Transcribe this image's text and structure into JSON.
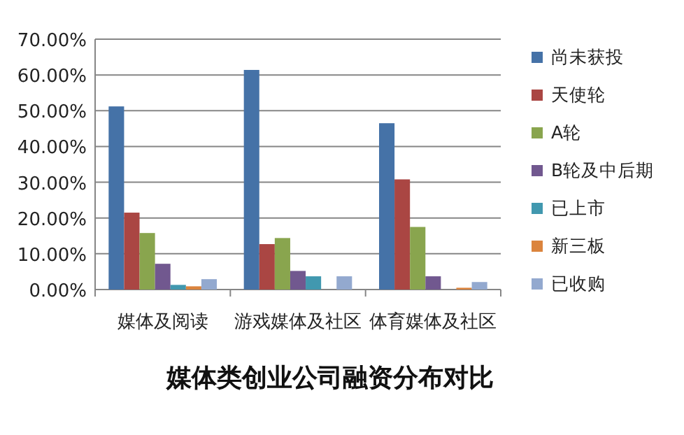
{
  "chart_data": {
    "type": "bar",
    "title": "媒体类创业公司融资分布对比",
    "categories": [
      "媒体及阅读",
      "游戏媒体及社区",
      "体育媒体及社区"
    ],
    "series": [
      {
        "name": "尚未获投",
        "color": "#4572a7",
        "values": [
          51.2,
          61.4,
          46.5
        ]
      },
      {
        "name": "天使轮",
        "color": "#aa4643",
        "values": [
          21.5,
          12.7,
          30.8
        ]
      },
      {
        "name": "A轮",
        "color": "#89a54e",
        "values": [
          15.8,
          14.4,
          17.5
        ]
      },
      {
        "name": "B轮及中后期",
        "color": "#71588f",
        "values": [
          7.2,
          5.2,
          3.7
        ]
      },
      {
        "name": "已上市",
        "color": "#4198af",
        "values": [
          1.3,
          3.7,
          0
        ]
      },
      {
        "name": "新三板",
        "color": "#db843d",
        "values": [
          0.9,
          0,
          0.5
        ]
      },
      {
        "name": "已收购",
        "color": "#93a9cf",
        "values": [
          2.9,
          3.7,
          2.1
        ]
      }
    ],
    "ylim": [
      0,
      70
    ],
    "yticks": [
      {
        "value": 0,
        "label": "0.00%"
      },
      {
        "value": 10,
        "label": "10.00%"
      },
      {
        "value": 20,
        "label": "20.00%"
      },
      {
        "value": 30,
        "label": "30.00%"
      },
      {
        "value": 40,
        "label": "40.00%"
      },
      {
        "value": 50,
        "label": "50.00%"
      },
      {
        "value": 60,
        "label": "60.00%"
      },
      {
        "value": 70,
        "label": "70.00%"
      }
    ],
    "grid": "y",
    "legend": "right"
  }
}
